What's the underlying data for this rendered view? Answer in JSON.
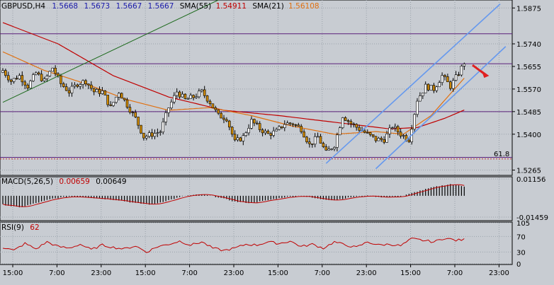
{
  "header": {
    "symbol": "GBPUSD,H4",
    "open": "1.5668",
    "high": "1.5673",
    "low": "1.5667",
    "close": "1.5667",
    "sma55_label": "SMA(55)",
    "sma55_value": "1.54911",
    "sma21_label": "SMA(21)",
    "sma21_value": "1.56108"
  },
  "colors": {
    "background": "#c8ccd2",
    "panel": "#c8ccd2",
    "grid": "#9aa2ab",
    "bull_body": "#ffffff",
    "bear_body": "#d08a00",
    "wick": "#000000",
    "sma55": "#c00000",
    "sma21": "#e07010",
    "hline": "#5a1f7a",
    "trend_green": "#1e6b1e",
    "channel": "#6699ee",
    "arrow": "#e02020",
    "macd_bar": "#000000",
    "macd_signal": "#c00000",
    "rsi_line": "#c00000",
    "values_blue": "#1a1aaa",
    "values_red": "#c00000"
  },
  "chart_data": [
    {
      "type": "candlestick",
      "title": "GBPUSD,H4",
      "y_ticks": [
        "1.5875",
        "1.5740",
        "1.5655",
        "1.5570",
        "1.5485",
        "1.5400",
        "1.5265"
      ],
      "ylim": [
        1.5245,
        1.5905
      ],
      "x_ticks": [
        "15:00",
        "7:00",
        "23:00",
        "15:00",
        "7:00",
        "23:00",
        "15:00",
        "7:00",
        "23:00",
        "15:00",
        "7:00",
        "23:00"
      ],
      "horizontal_levels": [
        1.5778,
        1.5665,
        1.5485,
        1.5313
      ],
      "fib_level": {
        "label": "61.8",
        "value": 1.5307
      },
      "anchors": [
        [
          0,
          1.564
        ],
        [
          3,
          1.56
        ],
        [
          6,
          1.562
        ],
        [
          9,
          1.558
        ],
        [
          12,
          1.563
        ],
        [
          15,
          1.56
        ],
        [
          18,
          1.565
        ],
        [
          21,
          1.559
        ],
        [
          24,
          1.556
        ],
        [
          27,
          1.559
        ],
        [
          30,
          1.56
        ],
        [
          33,
          1.556
        ],
        [
          36,
          1.556
        ],
        [
          39,
          1.55
        ],
        [
          42,
          1.556
        ],
        [
          45,
          1.551
        ],
        [
          48,
          1.546
        ],
        [
          51,
          1.539
        ],
        [
          54,
          1.54
        ],
        [
          57,
          1.541
        ],
        [
          60,
          1.55
        ],
        [
          63,
          1.556
        ],
        [
          66,
          1.553
        ],
        [
          69,
          1.554
        ],
        [
          72,
          1.556
        ],
        [
          75,
          1.552
        ],
        [
          78,
          1.547
        ],
        [
          81,
          1.546
        ],
        [
          84,
          1.537
        ],
        [
          87,
          1.539
        ],
        [
          90,
          1.545
        ],
        [
          93,
          1.542
        ],
        [
          96,
          1.54
        ],
        [
          99,
          1.541
        ],
        [
          102,
          1.544
        ],
        [
          105,
          1.544
        ],
        [
          108,
          1.542
        ],
        [
          111,
          1.536
        ],
        [
          114,
          1.539
        ],
        [
          117,
          1.533
        ],
        [
          120,
          1.536
        ],
        [
          123,
          1.547
        ],
        [
          126,
          1.544
        ],
        [
          129,
          1.542
        ],
        [
          132,
          1.54
        ],
        [
          135,
          1.538
        ],
        [
          138,
          1.538
        ],
        [
          141,
          1.543
        ],
        [
          144,
          1.54
        ],
        [
          147,
          1.538
        ],
        [
          150,
          1.553
        ],
        [
          153,
          1.558
        ],
        [
          156,
          1.557
        ],
        [
          159,
          1.562
        ],
        [
          162,
          1.558
        ],
        [
          165,
          1.563
        ],
        [
          167,
          1.567
        ]
      ],
      "sma55": [
        [
          0,
          1.582
        ],
        [
          20,
          1.574
        ],
        [
          40,
          1.562
        ],
        [
          60,
          1.554
        ],
        [
          80,
          1.549
        ],
        [
          100,
          1.547
        ],
        [
          120,
          1.5445
        ],
        [
          140,
          1.542
        ],
        [
          150,
          1.5425
        ],
        [
          160,
          1.546
        ],
        [
          167,
          1.5491
        ]
      ],
      "sma21": [
        [
          0,
          1.571
        ],
        [
          15,
          1.564
        ],
        [
          30,
          1.559
        ],
        [
          45,
          1.553
        ],
        [
          60,
          1.549
        ],
        [
          75,
          1.55
        ],
        [
          90,
          1.547
        ],
        [
          105,
          1.543
        ],
        [
          120,
          1.54
        ],
        [
          135,
          1.541
        ],
        [
          145,
          1.54
        ],
        [
          155,
          1.547
        ],
        [
          167,
          1.5611
        ]
      ],
      "trend_line": [
        [
          0,
          1.552
        ],
        [
          78,
          1.5905
        ]
      ],
      "channel_lower": [
        [
          117,
          1.529
        ],
        [
          180,
          1.589
        ]
      ],
      "channel_upper": [
        [
          135,
          1.527
        ],
        [
          182,
          1.573
        ]
      ],
      "arrow": {
        "from": [
          170,
          1.566
        ],
        "to": [
          176,
          1.562
        ]
      }
    },
    {
      "type": "bar",
      "title": "MACD(5,26,5)",
      "values_text": [
        "0.00659",
        "0.00649"
      ],
      "y_ticks": [
        "0.01156",
        "-0.01459"
      ],
      "ylim": [
        -0.0165,
        0.0125
      ],
      "anchors": [
        [
          0,
          -0.006
        ],
        [
          6,
          -0.008
        ],
        [
          12,
          -0.005
        ],
        [
          18,
          -0.002
        ],
        [
          24,
          -0.0005
        ],
        [
          30,
          -0.001
        ],
        [
          36,
          -0.002
        ],
        [
          42,
          -0.003
        ],
        [
          48,
          -0.005
        ],
        [
          54,
          -0.006
        ],
        [
          60,
          -0.003
        ],
        [
          66,
          0.0
        ],
        [
          72,
          0.001
        ],
        [
          78,
          -0.001
        ],
        [
          84,
          -0.004
        ],
        [
          90,
          -0.005
        ],
        [
          96,
          -0.003
        ],
        [
          102,
          -0.001
        ],
        [
          108,
          0.0
        ],
        [
          114,
          -0.002
        ],
        [
          120,
          -0.003
        ],
        [
          126,
          -0.001
        ],
        [
          132,
          0.0
        ],
        [
          138,
          -0.001
        ],
        [
          144,
          -0.0005
        ],
        [
          150,
          0.003
        ],
        [
          156,
          0.006
        ],
        [
          162,
          0.008
        ],
        [
          167,
          0.0065
        ]
      ]
    },
    {
      "type": "line",
      "title": "RSI(9)",
      "value_text": "62",
      "y_ticks": [
        "105",
        "70",
        "30",
        "0"
      ],
      "ylim": [
        0,
        105
      ],
      "anchors": [
        [
          0,
          42
        ],
        [
          4,
          34
        ],
        [
          8,
          52
        ],
        [
          12,
          38
        ],
        [
          16,
          56
        ],
        [
          20,
          44
        ],
        [
          24,
          40
        ],
        [
          28,
          50
        ],
        [
          32,
          36
        ],
        [
          36,
          48
        ],
        [
          40,
          42
        ],
        [
          44,
          38
        ],
        [
          48,
          46
        ],
        [
          52,
          30
        ],
        [
          56,
          44
        ],
        [
          60,
          50
        ],
        [
          64,
          58
        ],
        [
          68,
          48
        ],
        [
          72,
          56
        ],
        [
          76,
          40
        ],
        [
          80,
          34
        ],
        [
          84,
          40
        ],
        [
          88,
          50
        ],
        [
          92,
          48
        ],
        [
          96,
          56
        ],
        [
          100,
          52
        ],
        [
          104,
          58
        ],
        [
          108,
          44
        ],
        [
          112,
          50
        ],
        [
          116,
          40
        ],
        [
          120,
          56
        ],
        [
          124,
          48
        ],
        [
          128,
          42
        ],
        [
          132,
          56
        ],
        [
          136,
          48
        ],
        [
          140,
          50
        ],
        [
          144,
          46
        ],
        [
          148,
          64
        ],
        [
          152,
          60
        ],
        [
          156,
          56
        ],
        [
          160,
          66
        ],
        [
          164,
          60
        ],
        [
          167,
          62
        ]
      ]
    }
  ]
}
